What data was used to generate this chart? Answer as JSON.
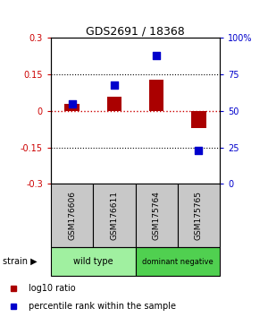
{
  "title": "GDS2691 / 18368",
  "samples": [
    "GSM176606",
    "GSM176611",
    "GSM175764",
    "GSM175765"
  ],
  "log10_ratio": [
    0.03,
    0.06,
    0.13,
    -0.07
  ],
  "percentile_rank": [
    55,
    68,
    88,
    23
  ],
  "ylim_left": [
    -0.3,
    0.3
  ],
  "ylim_right": [
    0,
    100
  ],
  "yticks_left": [
    -0.3,
    -0.15,
    0,
    0.15,
    0.3
  ],
  "ytick_labels_left": [
    "-0.3",
    "-0.15",
    "0",
    "0.15",
    "0.3"
  ],
  "yticks_right": [
    0,
    25,
    50,
    75,
    100
  ],
  "ytick_labels_right": [
    "0",
    "25",
    "50",
    "75",
    "100%"
  ],
  "bar_color": "#AA0000",
  "dot_color": "#0000CC",
  "bar_width": 0.35,
  "dot_size": 40,
  "group_spans": [
    [
      0,
      2,
      "wild type",
      "#A0F0A0"
    ],
    [
      2,
      4,
      "dominant negative",
      "#50D050"
    ]
  ],
  "sample_box_color": "#C8C8C8",
  "legend_items": [
    {
      "color": "#AA0000",
      "label": "log10 ratio"
    },
    {
      "color": "#0000CC",
      "label": "percentile rank within the sample"
    }
  ]
}
